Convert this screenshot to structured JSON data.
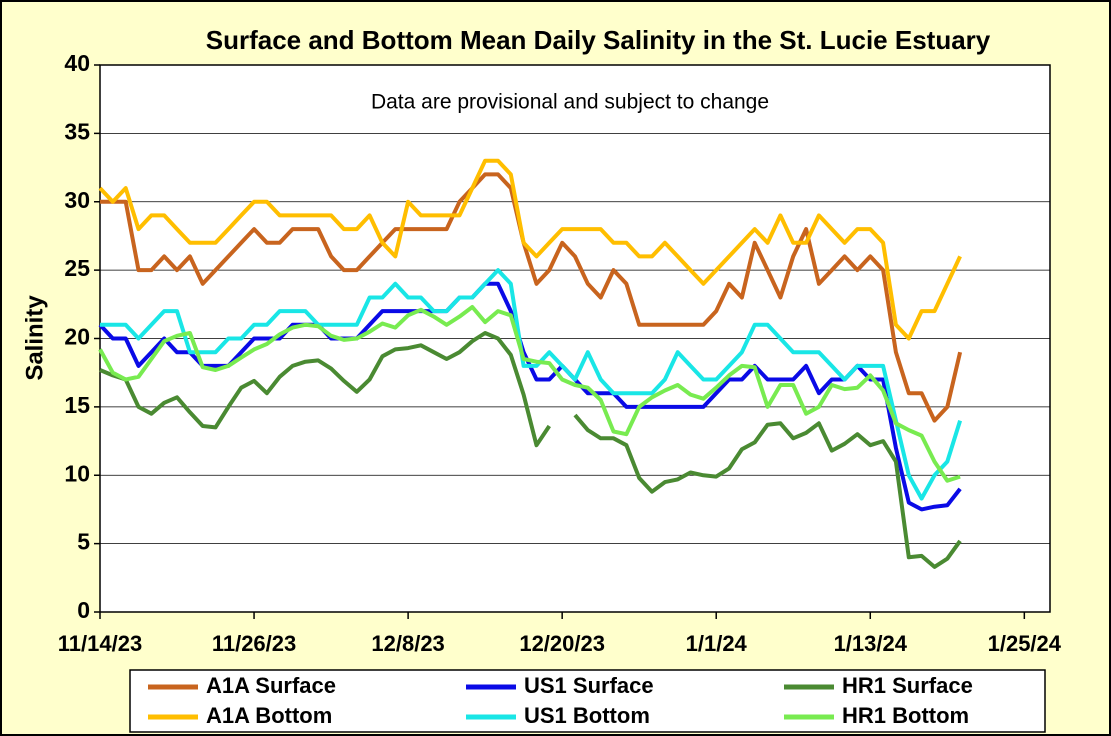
{
  "chart_data": {
    "type": "line",
    "title": "Surface and Bottom Mean Daily Salinity in the St. Lucie Estuary",
    "annotation": "Data are provisional and subject to change",
    "y_label": "Salinity",
    "x": [
      "2023-11-14",
      "2023-11-15",
      "2023-11-16",
      "2023-11-17",
      "2023-11-18",
      "2023-11-19",
      "2023-11-20",
      "2023-11-21",
      "2023-11-22",
      "2023-11-23",
      "2023-11-24",
      "2023-11-25",
      "2023-11-26",
      "2023-11-27",
      "2023-11-28",
      "2023-11-29",
      "2023-11-30",
      "2023-12-01",
      "2023-12-02",
      "2023-12-03",
      "2023-12-04",
      "2023-12-05",
      "2023-12-06",
      "2023-12-07",
      "2023-12-08",
      "2023-12-09",
      "2023-12-10",
      "2023-12-11",
      "2023-12-12",
      "2023-12-13",
      "2023-12-14",
      "2023-12-15",
      "2023-12-16",
      "2023-12-17",
      "2023-12-18",
      "2023-12-19",
      "2023-12-20",
      "2023-12-21",
      "2023-12-22",
      "2023-12-23",
      "2023-12-24",
      "2023-12-25",
      "2023-12-26",
      "2023-12-27",
      "2023-12-28",
      "2023-12-29",
      "2023-12-30",
      "2023-12-31",
      "2024-01-01",
      "2024-01-02",
      "2024-01-03",
      "2024-01-04",
      "2024-01-05",
      "2024-01-06",
      "2024-01-07",
      "2024-01-08",
      "2024-01-09",
      "2024-01-10",
      "2024-01-11",
      "2024-01-12",
      "2024-01-13",
      "2024-01-14",
      "2024-01-15",
      "2024-01-16",
      "2024-01-17",
      "2024-01-18",
      "2024-01-19",
      "2024-01-20"
    ],
    "series": [
      {
        "name": "A1A Surface",
        "color": "#c8641e",
        "values": [
          30,
          30,
          30,
          25,
          25,
          26,
          25,
          26,
          24,
          25,
          26,
          27,
          28,
          27,
          27,
          28,
          28,
          28,
          26,
          25,
          25,
          26,
          27,
          28,
          28,
          28,
          28,
          28,
          30,
          31,
          32,
          32,
          31,
          27,
          24,
          25,
          27,
          26,
          24,
          23,
          25,
          24,
          21,
          21,
          21,
          21,
          21,
          21,
          22,
          24,
          23,
          27,
          25,
          23,
          26,
          28,
          24,
          25,
          26,
          25,
          26,
          25,
          19,
          16,
          16,
          14,
          15,
          19
        ]
      },
      {
        "name": "US1 Surface",
        "color": "#0a0ae6",
        "values": [
          21,
          20,
          20,
          18,
          19,
          20,
          19,
          19,
          18,
          18,
          18,
          19,
          20,
          20,
          20,
          21,
          21,
          21,
          20,
          20,
          20,
          21,
          22,
          22,
          22,
          22,
          22,
          22,
          23,
          23,
          24,
          24,
          22,
          19,
          17,
          17,
          18,
          17,
          16,
          16,
          16,
          15,
          15,
          15,
          15,
          15,
          15,
          15,
          16,
          17,
          17,
          18,
          17,
          17,
          17,
          18,
          16,
          17,
          17,
          18,
          17,
          17,
          12,
          8,
          7.5,
          7.7,
          7.8,
          9
        ]
      },
      {
        "name": "HR1 Surface",
        "color": "#4a8a32",
        "values": [
          17.7,
          17.3,
          17,
          15,
          14.5,
          15.3,
          15.7,
          14.6,
          13.6,
          13.5,
          15,
          16.4,
          16.9,
          16,
          17.2,
          18,
          18.3,
          18.4,
          17.8,
          16.9,
          16.1,
          17,
          18.7,
          19.2,
          19.3,
          19.5,
          19,
          18.5,
          19,
          19.8,
          20.4,
          20,
          18.8,
          15.9,
          12.2,
          13.6,
          null,
          14.4,
          13.3,
          12.7,
          12.7,
          12.2,
          9.8,
          8.8,
          9.5,
          9.7,
          10.2,
          10,
          9.9,
          10.5,
          11.9,
          12.4,
          13.7,
          13.8,
          12.7,
          13.1,
          13.8,
          11.8,
          12.3,
          13,
          12.2,
          12.5,
          11,
          4,
          4.1,
          3.3,
          3.9,
          5.2
        ]
      },
      {
        "name": "A1A Bottom",
        "color": "#ffbe00",
        "values": [
          31,
          30,
          31,
          28,
          29,
          29,
          28,
          27,
          27,
          27,
          28,
          29,
          30,
          30,
          29,
          29,
          29,
          29,
          29,
          28,
          28,
          29,
          27,
          26,
          30,
          29,
          29,
          29,
          29,
          31,
          33,
          33,
          32,
          27,
          26,
          27,
          28,
          28,
          28,
          28,
          27,
          27,
          26,
          26,
          27,
          26,
          25,
          24,
          25,
          26,
          27,
          28,
          27,
          29,
          27,
          27,
          29,
          28,
          27,
          28,
          28,
          27,
          21,
          20,
          22,
          22,
          24,
          26
        ]
      },
      {
        "name": "US1 Bottom",
        "color": "#19e6e6",
        "values": [
          21,
          21,
          21,
          20,
          21,
          22,
          22,
          19,
          19,
          19,
          20,
          20,
          21,
          21,
          22,
          22,
          22,
          21,
          21,
          21,
          21,
          23,
          23,
          24,
          23,
          23,
          22,
          22,
          23,
          23,
          24,
          25,
          24,
          18,
          18,
          19,
          18,
          17,
          19,
          17,
          16,
          16,
          16,
          16,
          17,
          19,
          18,
          17,
          17,
          18,
          19,
          21,
          21,
          20,
          19,
          19,
          19,
          18,
          17,
          18,
          18,
          18,
          14,
          10,
          8.3,
          10,
          11,
          14
        ]
      },
      {
        "name": "HR1 Bottom",
        "color": "#78eb50",
        "values": [
          19.2,
          17.5,
          17,
          17.2,
          18.5,
          19.8,
          20.2,
          20.4,
          17.9,
          17.7,
          18,
          18.6,
          19.2,
          19.6,
          20.3,
          20.8,
          21,
          20.9,
          20.2,
          19.9,
          20,
          20.5,
          21.1,
          20.8,
          21.7,
          22.1,
          21.6,
          21,
          21.6,
          22.3,
          21.2,
          22,
          21.7,
          18.5,
          18.3,
          18.2,
          17,
          16.6,
          16.4,
          15.5,
          13.2,
          13,
          15,
          15.7,
          16.2,
          16.6,
          15.9,
          15.6,
          16.4,
          17.3,
          18,
          17.9,
          15,
          16.6,
          16.6,
          14.5,
          15,
          16.6,
          16.3,
          16.4,
          17.3,
          16.2,
          13.8,
          13.3,
          12.9,
          11,
          9.6,
          9.9
        ]
      }
    ],
    "xlim": [
      "2023-11-14",
      "2024-01-27"
    ],
    "xticks": [
      {
        "value": "2023-11-14",
        "label": "11/14/23"
      },
      {
        "value": "2023-11-26",
        "label": "11/26/23"
      },
      {
        "value": "2023-12-08",
        "label": "12/8/23"
      },
      {
        "value": "2023-12-20",
        "label": "12/20/23"
      },
      {
        "value": "2024-01-01",
        "label": "1/1/24"
      },
      {
        "value": "2024-01-13",
        "label": "1/13/24"
      },
      {
        "value": "2024-01-25",
        "label": "1/25/24"
      }
    ],
    "ylim": [
      0,
      40
    ],
    "yticks": [
      0,
      5,
      10,
      15,
      20,
      25,
      30,
      35,
      40
    ],
    "grid": true,
    "legend": "bottom"
  }
}
